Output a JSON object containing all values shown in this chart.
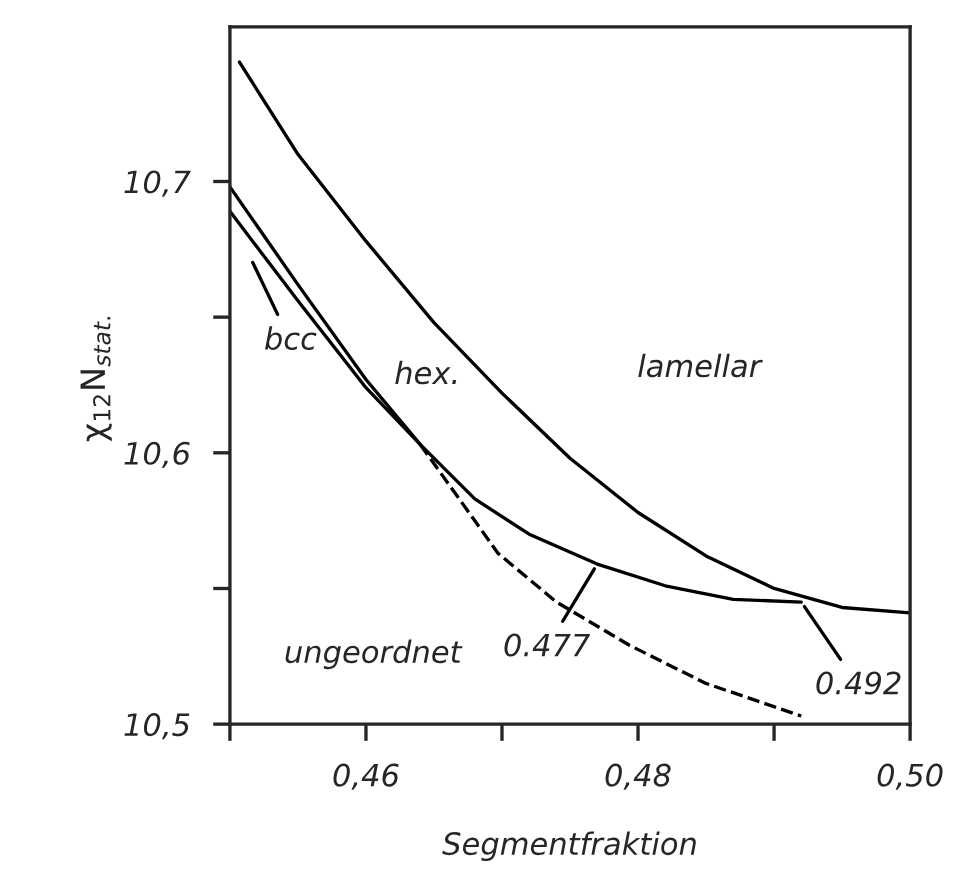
{
  "chart_data": {
    "type": "line",
    "xlabel": "Segmentfraktion",
    "ylabel": "χ$_{12}$N$_{stat.}$",
    "xlim": [
      0.45,
      0.5
    ],
    "ylim": [
      10.5,
      10.757
    ],
    "xticks": [
      {
        "value": 0.45,
        "label": null
      },
      {
        "value": 0.46,
        "label": "0,46"
      },
      {
        "value": 0.47,
        "label": null
      },
      {
        "value": 0.48,
        "label": "0,48"
      },
      {
        "value": 0.49,
        "label": null
      },
      {
        "value": 0.5,
        "label": "0,50"
      }
    ],
    "yticks": [
      {
        "value": 10.5,
        "label": "10,5"
      },
      {
        "value": 10.55,
        "label": null
      },
      {
        "value": 10.6,
        "label": "10,6"
      },
      {
        "value": 10.65,
        "label": null
      },
      {
        "value": 10.7,
        "label": "10,7"
      }
    ],
    "grid": false,
    "legend": false,
    "series": [
      {
        "color": "#000000",
        "line_style": "solid",
        "x": [
          0.4507,
          0.455,
          0.46,
          0.465,
          0.47,
          0.475,
          0.48,
          0.485,
          0.49,
          0.495,
          0.5
        ],
        "values": [
          10.744,
          10.71,
          10.678,
          10.648,
          10.622,
          10.598,
          10.578,
          10.562,
          10.55,
          10.543,
          10.541
        ]
      },
      {
        "color": "#000000",
        "line_style": "solid",
        "x": [
          0.45,
          0.455,
          0.46,
          0.464,
          0.468,
          0.472,
          0.477,
          0.482,
          0.487,
          0.492
        ],
        "values": [
          10.698,
          10.662,
          10.627,
          10.603,
          10.583,
          10.57,
          10.559,
          10.551,
          10.546,
          10.545
        ]
      },
      {
        "color": "#000000",
        "line_style": "solid",
        "x": [
          0.45,
          0.455,
          0.46,
          0.464
        ],
        "values": [
          10.689,
          10.656,
          10.624,
          10.603
        ]
      },
      {
        "color": "#000000",
        "line_style": "dashed",
        "x": [
          0.464,
          0.467,
          0.4697,
          0.474,
          0.4794,
          0.485,
          0.492
        ],
        "values": [
          10.603,
          10.582,
          10.563,
          10.545,
          10.529,
          10.515,
          10.503
        ]
      }
    ],
    "annotations": [
      {
        "text": "bcc",
        "x": 0.4515,
        "y": 10.672
      },
      "hex.",
      "lamellar",
      "ungeordnet",
      {
        "text": "0.477",
        "x": 0.477,
        "y": 10.559
      },
      {
        "text": "0.492",
        "x": 0.492,
        "y": 10.545
      }
    ]
  }
}
